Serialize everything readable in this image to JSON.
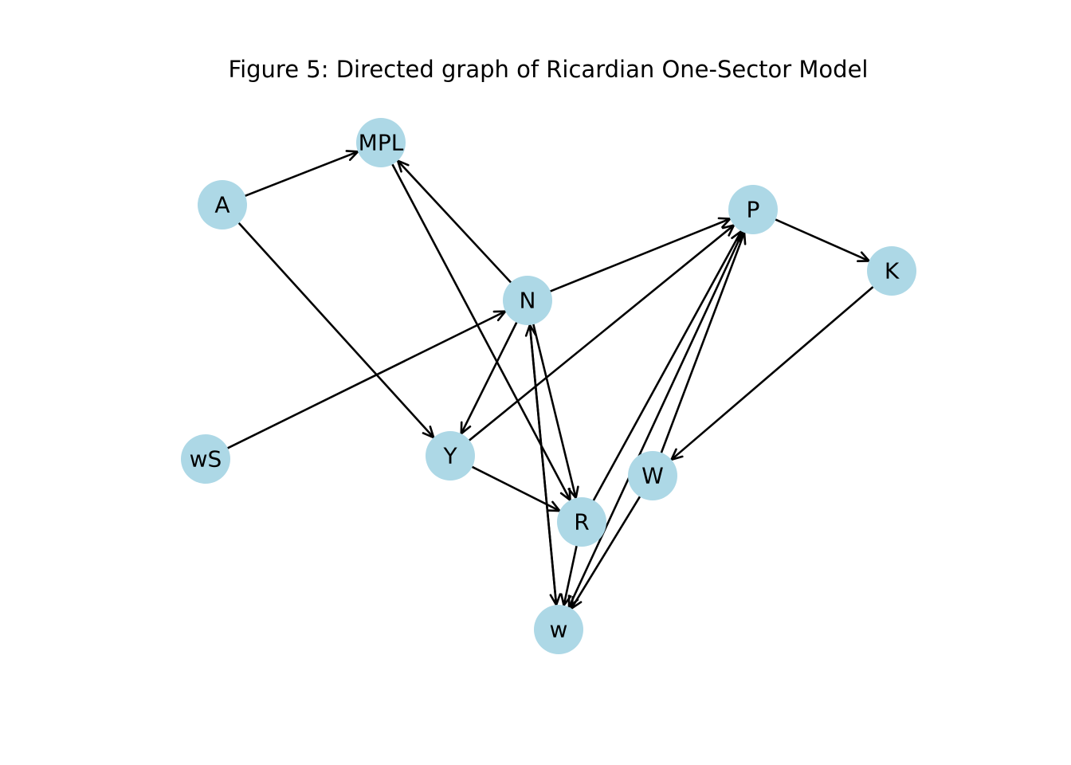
{
  "title": "Figure 5: Directed graph of Ricardian One-Sector Model",
  "colors": {
    "node_fill": "#add8e6",
    "edge": "#000000",
    "label": "#000000"
  },
  "nodes": [
    {
      "id": "MPL",
      "label": "MPL"
    },
    {
      "id": "A",
      "label": "A"
    },
    {
      "id": "P",
      "label": "P"
    },
    {
      "id": "K",
      "label": "K"
    },
    {
      "id": "N",
      "label": "N"
    },
    {
      "id": "wS",
      "label": "wS"
    },
    {
      "id": "Y",
      "label": "Y"
    },
    {
      "id": "W",
      "label": "W"
    },
    {
      "id": "R",
      "label": "R"
    },
    {
      "id": "w",
      "label": "w"
    }
  ],
  "edges": [
    {
      "from": "A",
      "to": "MPL"
    },
    {
      "from": "A",
      "to": "Y"
    },
    {
      "from": "MPL",
      "to": "R"
    },
    {
      "from": "N",
      "to": "MPL"
    },
    {
      "from": "N",
      "to": "P"
    },
    {
      "from": "N",
      "to": "Y"
    },
    {
      "from": "N",
      "to": "R"
    },
    {
      "from": "N",
      "to": "w"
    },
    {
      "from": "w",
      "to": "N"
    },
    {
      "from": "wS",
      "to": "N"
    },
    {
      "from": "Y",
      "to": "P"
    },
    {
      "from": "Y",
      "to": "R"
    },
    {
      "from": "P",
      "to": "K"
    },
    {
      "from": "P",
      "to": "w"
    },
    {
      "from": "K",
      "to": "W"
    },
    {
      "from": "R",
      "to": "P"
    },
    {
      "from": "R",
      "to": "w"
    },
    {
      "from": "W",
      "to": "P"
    },
    {
      "from": "W",
      "to": "w"
    }
  ]
}
